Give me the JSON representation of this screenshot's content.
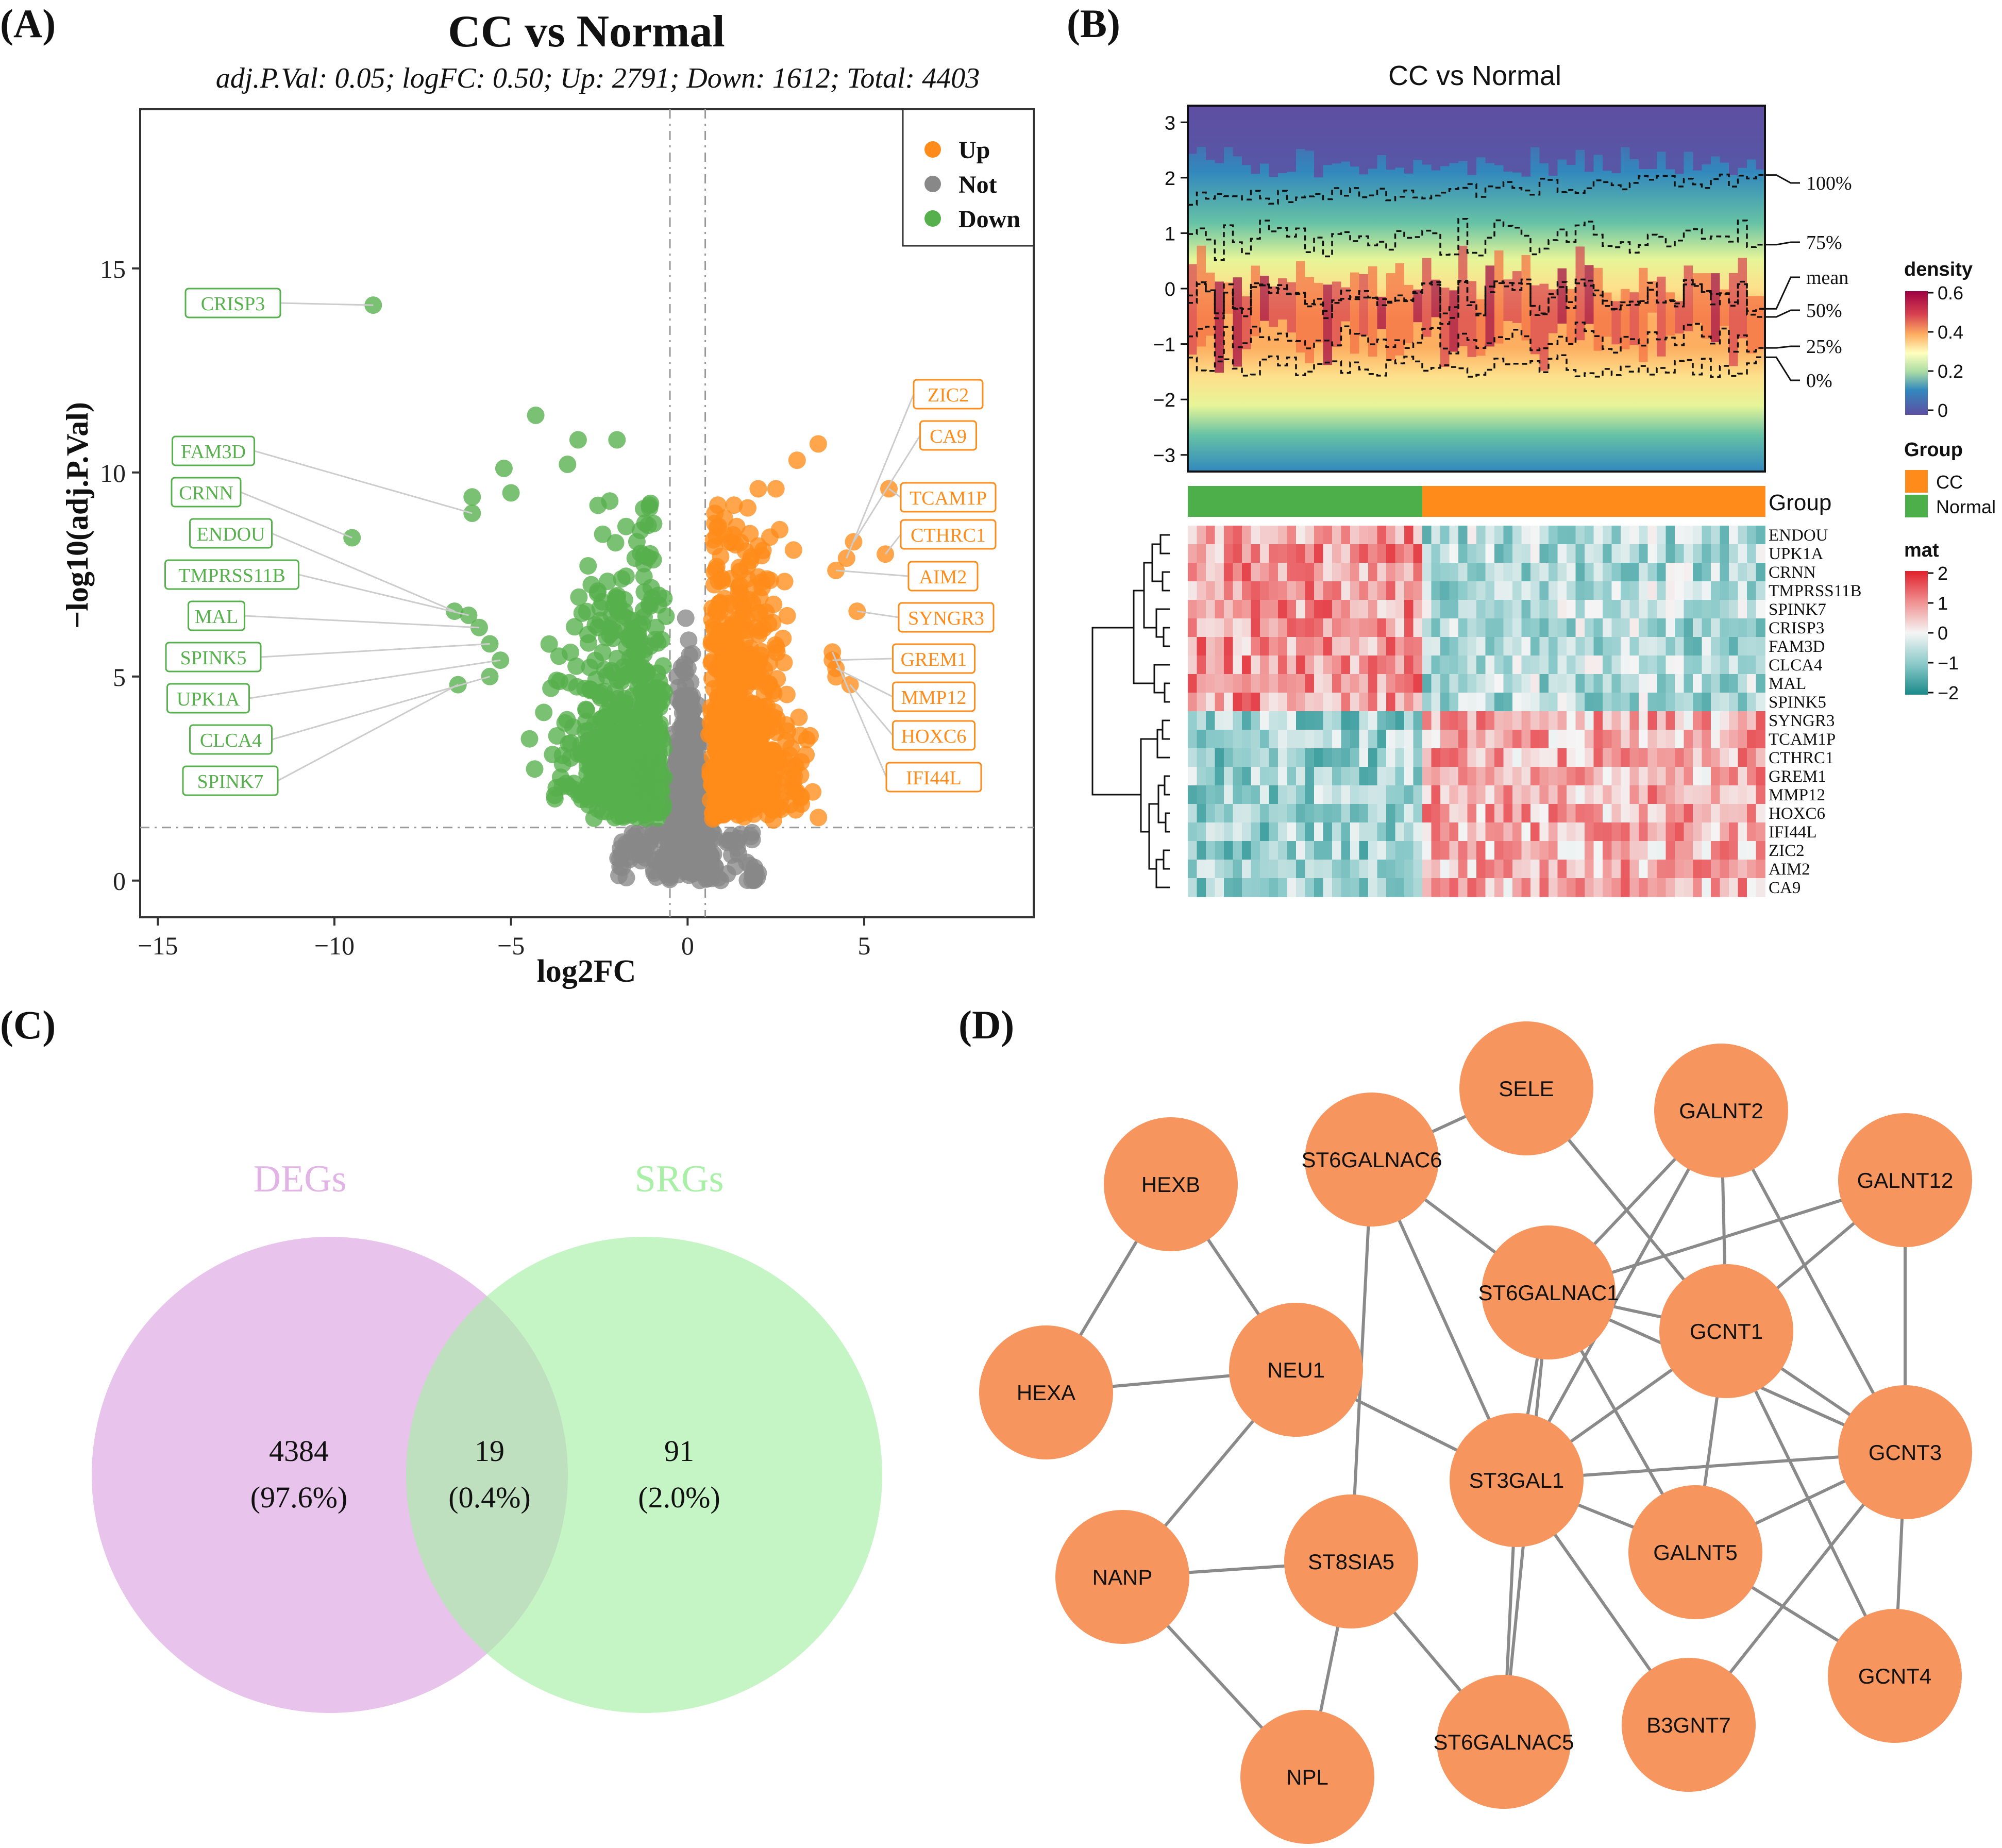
{
  "panels": {
    "a": "(A)",
    "b": "(B)",
    "c": "(C)",
    "d": "(D)"
  },
  "colors": {
    "up": "#FF8C1A",
    "not": "#888888",
    "down": "#56B04C",
    "node": "#F7955F",
    "edge": "#8A8A8A",
    "venn_left": "#E2B4E6",
    "venn_right": "#A8F0A6"
  },
  "chart_data": [
    {
      "type": "scatter",
      "id": "volcano",
      "title": "CC vs Normal",
      "subtitle": "adj.P.Val: 0.05; logFC: 0.50; Up: 2791; Down: 1612; Total: 4403",
      "xlabel": "log2FC",
      "ylabel": "−log10(adj.P.Val)",
      "xlim": [
        -15.5,
        9.8
      ],
      "ylim": [
        -0.9,
        18.9
      ],
      "xticks": [
        -15,
        -10,
        -5,
        0,
        5
      ],
      "xtick_labels": [
        "−15",
        "−10",
        "−5",
        "0",
        "5"
      ],
      "yticks": [
        0,
        5,
        10,
        15
      ],
      "yticks_labels": [
        "0",
        "5",
        "10",
        "15"
      ],
      "thresholds": {
        "logFC": 0.5,
        "adj_p_line": 1.3
      },
      "legend": {
        "position": "top-right",
        "entries": [
          {
            "name": "Up",
            "color": "#FF8C1A"
          },
          {
            "name": "Not",
            "color": "#888888"
          },
          {
            "name": "Down",
            "color": "#56B04C"
          }
        ]
      },
      "labeled_down": [
        {
          "label": "CRISP3",
          "x": -8.9,
          "y": 14.1
        },
        {
          "label": "FAM3D",
          "x": -6.1,
          "y": 9.0
        },
        {
          "label": "CRNN",
          "x": -9.5,
          "y": 8.4
        },
        {
          "label": "ENDOU",
          "x": -6.6,
          "y": 6.6
        },
        {
          "label": "TMPRSS11B",
          "x": -6.2,
          "y": 6.5
        },
        {
          "label": "MAL",
          "x": -5.9,
          "y": 6.2
        },
        {
          "label": "SPINK5",
          "x": -5.6,
          "y": 5.8
        },
        {
          "label": "UPK1A",
          "x": -5.3,
          "y": 5.4
        },
        {
          "label": "CLCA4",
          "x": -5.6,
          "y": 5.0
        },
        {
          "label": "SPINK7",
          "x": -6.5,
          "y": 4.8
        }
      ],
      "labeled_up": [
        {
          "label": "ZIC2",
          "x": 4.5,
          "y": 7.9
        },
        {
          "label": "CA9",
          "x": 4.7,
          "y": 8.3
        },
        {
          "label": "TCAM1P",
          "x": 5.7,
          "y": 9.6
        },
        {
          "label": "CTHRC1",
          "x": 5.6,
          "y": 8.0
        },
        {
          "label": "AIM2",
          "x": 4.2,
          "y": 7.6
        },
        {
          "label": "SYNGR3",
          "x": 4.8,
          "y": 6.6
        },
        {
          "label": "GREM1",
          "x": 4.1,
          "y": 5.4
        },
        {
          "label": "MMP12",
          "x": 4.2,
          "y": 5.2
        },
        {
          "label": "HOXC6",
          "x": 4.6,
          "y": 4.8
        },
        {
          "label": "IFI44L",
          "x": 4.1,
          "y": 5.6
        }
      ]
    },
    {
      "type": "heatmap",
      "id": "density_heatmap",
      "title": "CC vs Normal",
      "y_ticks": [
        "3",
        "2",
        "1",
        "0",
        "−1",
        "−2",
        "−3"
      ],
      "ylim": [
        -3.3,
        3.3
      ],
      "quantile_labels": [
        "100%",
        "75%",
        "mean",
        "50%",
        "25%",
        "0%"
      ],
      "density_legend": {
        "title": "density",
        "ticks": [
          "0.6",
          "0.4",
          "0.2",
          "0"
        ]
      },
      "group_legend": {
        "title": "Group",
        "entries": [
          {
            "name": "CC",
            "color": "#FF8C1A"
          },
          {
            "name": "Normal",
            "color": "#4DAF4A"
          }
        ]
      },
      "group_label": "Group",
      "n_normal": 26,
      "n_cc": 38,
      "mat_legend": {
        "title": "mat",
        "ticks": [
          "2",
          "1",
          "0",
          "−1",
          "−2"
        ]
      },
      "genes": [
        "ENDOU",
        "UPK1A",
        "CRNN",
        "TMPRSS11B",
        "SPINK7",
        "CRISP3",
        "FAM3D",
        "CLCA4",
        "MAL",
        "SPINK5",
        "SYNGR3",
        "TCAM1P",
        "CTHRC1",
        "GREM1",
        "MMP12",
        "HOXC6",
        "IFI44L",
        "ZIC2",
        "AIM2",
        "CA9"
      ],
      "gene_direction": [
        "down",
        "down",
        "down",
        "down",
        "down",
        "down",
        "down",
        "down",
        "down",
        "down",
        "up",
        "up",
        "up",
        "up",
        "up",
        "up",
        "up",
        "up",
        "up",
        "up"
      ]
    },
    {
      "type": "venn",
      "id": "venn",
      "sets": [
        "DEGs",
        "SRGs"
      ],
      "regions": [
        {
          "count": "4384",
          "percent": "(97.6%)"
        },
        {
          "count": "19",
          "percent": "(0.4%)"
        },
        {
          "count": "91",
          "percent": "(2.0%)"
        }
      ]
    },
    {
      "type": "network",
      "id": "ppi",
      "nodes": [
        "SELE",
        "GALNT2",
        "ST6GALNAC6",
        "HEXB",
        "GALNT12",
        "ST6GALNAC1",
        "GCNT1",
        "NEU1",
        "HEXA",
        "ST3GAL1",
        "GCNT3",
        "GALNT5",
        "NANP",
        "ST8SIA5",
        "GCNT4",
        "B3GNT7",
        "ST6GALNAC5",
        "NPL"
      ],
      "edges": [
        [
          "HEXB",
          "NEU1"
        ],
        [
          "HEXB",
          "HEXA"
        ],
        [
          "NEU1",
          "HEXA"
        ],
        [
          "NEU1",
          "NANP"
        ],
        [
          "NEU1",
          "ST3GAL1"
        ],
        [
          "NANP",
          "ST8SIA5"
        ],
        [
          "NANP",
          "NPL"
        ],
        [
          "ST8SIA5",
          "NPL"
        ],
        [
          "ST8SIA5",
          "ST6GALNAC5"
        ],
        [
          "ST8SIA5",
          "ST6GALNAC6"
        ],
        [
          "SELE",
          "ST6GALNAC6"
        ],
        [
          "SELE",
          "GCNT1"
        ],
        [
          "ST6GALNAC6",
          "ST6GALNAC1"
        ],
        [
          "ST6GALNAC6",
          "ST3GAL1"
        ],
        [
          "GALNT2",
          "ST6GALNAC1"
        ],
        [
          "GALNT2",
          "GCNT1"
        ],
        [
          "GALNT2",
          "GCNT3"
        ],
        [
          "GALNT2",
          "ST3GAL1"
        ],
        [
          "GALNT12",
          "ST6GALNAC1"
        ],
        [
          "GALNT12",
          "GCNT1"
        ],
        [
          "GALNT12",
          "GCNT3"
        ],
        [
          "ST6GALNAC1",
          "GCNT1"
        ],
        [
          "ST6GALNAC1",
          "GCNT3"
        ],
        [
          "ST6GALNAC1",
          "ST3GAL1"
        ],
        [
          "ST6GALNAC1",
          "GALNT5"
        ],
        [
          "ST6GALNAC1",
          "ST6GALNAC5"
        ],
        [
          "GCNT1",
          "ST3GAL1"
        ],
        [
          "GCNT1",
          "GALNT5"
        ],
        [
          "GCNT1",
          "GCNT4"
        ],
        [
          "GCNT1",
          "GCNT3"
        ],
        [
          "ST3GAL1",
          "GCNT3"
        ],
        [
          "ST3GAL1",
          "GALNT5"
        ],
        [
          "ST3GAL1",
          "ST6GALNAC5"
        ],
        [
          "ST3GAL1",
          "B3GNT7"
        ],
        [
          "GCNT3",
          "GALNT5"
        ],
        [
          "GCNT3",
          "GCNT4"
        ],
        [
          "GCNT3",
          "B3GNT7"
        ],
        [
          "GALNT5",
          "GCNT4"
        ]
      ]
    }
  ]
}
